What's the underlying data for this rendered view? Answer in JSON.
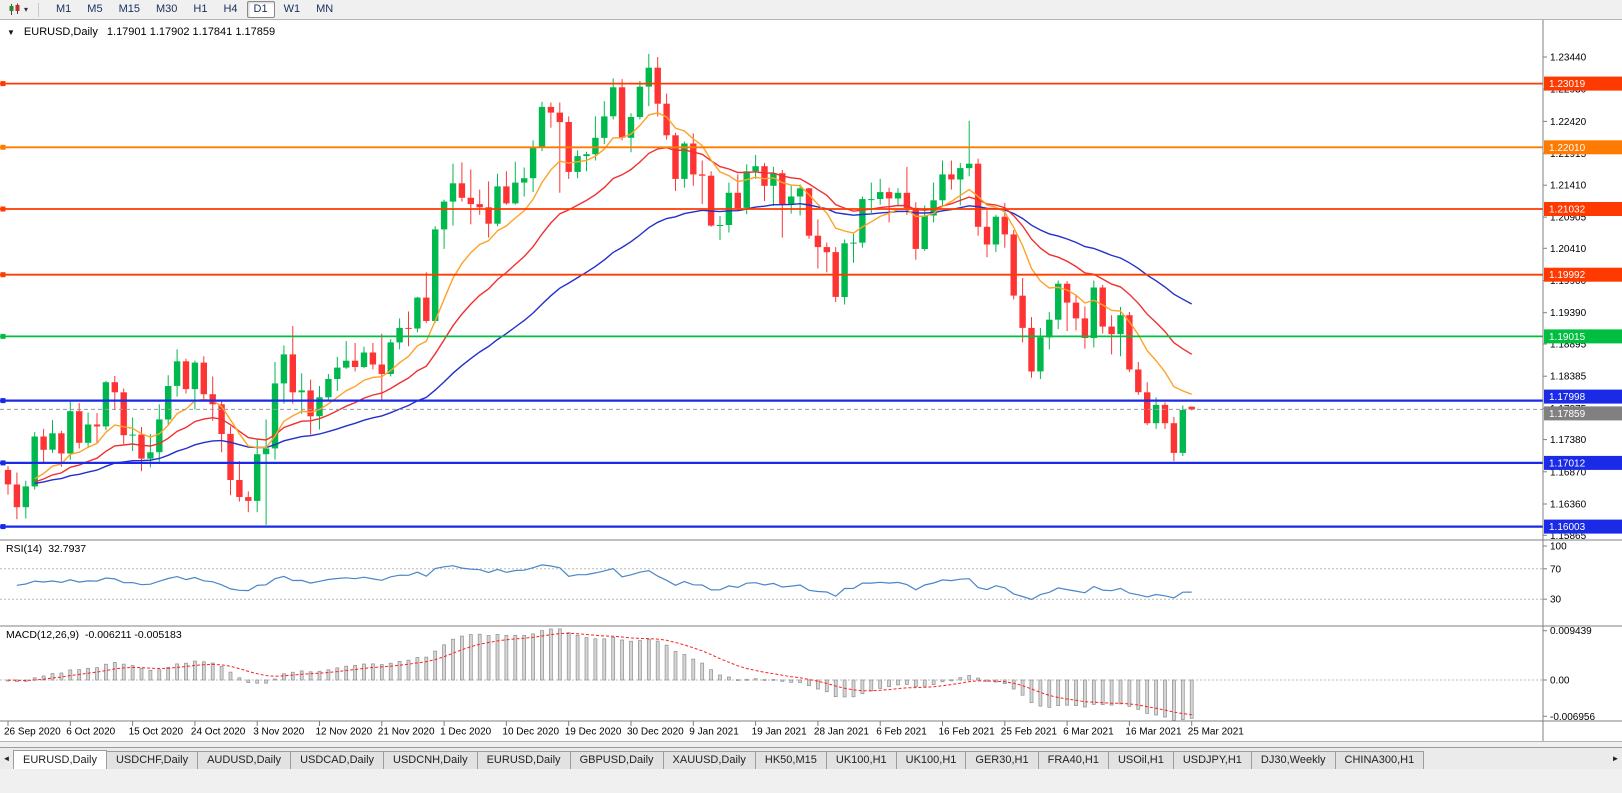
{
  "glyphs": {
    "window_marker": "▼",
    "dropdown": "▾",
    "tab_left": "◄",
    "tab_right": "►"
  },
  "toolbar": {
    "timeframes": [
      {
        "label": "M1",
        "active": false
      },
      {
        "label": "M5",
        "active": false
      },
      {
        "label": "M15",
        "active": false
      },
      {
        "label": "M30",
        "active": false
      },
      {
        "label": "H1",
        "active": false
      },
      {
        "label": "H4",
        "active": false
      },
      {
        "label": "D1",
        "active": true
      },
      {
        "label": "W1",
        "active": false
      },
      {
        "label": "MN",
        "active": false
      }
    ]
  },
  "chart_data": {
    "type": "candlestick",
    "symbol": "EURUSD",
    "timeframe": "Daily",
    "title": "EURUSD,Daily",
    "quotes": "1.17901 1.17902 1.17841 1.17859",
    "current_price": 1.17859,
    "current_price_display": "1.17859",
    "visible_price_range": {
      "high": 1.2403,
      "low": 1.1578
    },
    "colors": {
      "up": "#00b94e",
      "down": "#fe3434"
    },
    "price_axis_ticks": [
      "1.23440",
      "1.22930",
      "1.22420",
      "1.21915",
      "1.21410",
      "1.20905",
      "1.20410",
      "1.19900",
      "1.19390",
      "1.18895",
      "1.18385",
      "1.17875",
      "1.17380",
      "1.16870",
      "1.16360",
      "1.15865"
    ],
    "horizontal_levels": [
      {
        "price": 1.23019,
        "label": "1.23019",
        "color": "#ff3a00",
        "width": 1.8
      },
      {
        "price": 1.2201,
        "label": "1.22010",
        "color": "#ff7a00",
        "width": 1.8
      },
      {
        "price": 1.21032,
        "label": "1.21032",
        "color": "#ff3a00",
        "width": 1.8
      },
      {
        "price": 1.19992,
        "label": "1.19992",
        "color": "#ff3a00",
        "width": 1.8
      },
      {
        "price": 1.19015,
        "label": "1.19015",
        "color": "#00bf40",
        "width": 1.8
      },
      {
        "price": 1.17998,
        "label": "1.17998",
        "color": "#1a2ae6",
        "width": 2.2,
        "label_dy": -4
      },
      {
        "price": 1.17012,
        "label": "1.17012",
        "color": "#1a2ae6",
        "width": 2.2
      },
      {
        "price": 1.16003,
        "label": "1.16003",
        "color": "#1a2ae6",
        "width": 2.2
      }
    ],
    "moving_averages": [
      {
        "period": 45,
        "type": "ema",
        "color": "#2330cc"
      },
      {
        "period": 21,
        "type": "ema",
        "color": "#f03030"
      },
      {
        "period": 10,
        "type": "ema",
        "color": "#ffa226"
      }
    ],
    "x_labels": [
      {
        "i": 0,
        "label": "26 Sep 2020"
      },
      {
        "i": 7,
        "label": "6 Oct 2020"
      },
      {
        "i": 14,
        "label": "15 Oct 2020"
      },
      {
        "i": 21,
        "label": "24 Oct 2020"
      },
      {
        "i": 28,
        "label": "3 Nov 2020"
      },
      {
        "i": 35,
        "label": "12 Nov 2020"
      },
      {
        "i": 42,
        "label": "21 Nov 2020"
      },
      {
        "i": 49,
        "label": "1 Dec 2020"
      },
      {
        "i": 56,
        "label": "10 Dec 2020"
      },
      {
        "i": 63,
        "label": "19 Dec 2020"
      },
      {
        "i": 70,
        "label": "30 Dec 2020"
      },
      {
        "i": 77,
        "label": "9 Jan 2021"
      },
      {
        "i": 84,
        "label": "19 Jan 2021"
      },
      {
        "i": 91,
        "label": "28 Jan 2021"
      },
      {
        "i": 98,
        "label": "6 Feb 2021"
      },
      {
        "i": 105,
        "label": "16 Feb 2021"
      },
      {
        "i": 112,
        "label": "25 Feb 2021"
      },
      {
        "i": 119,
        "label": "6 Mar 2021"
      },
      {
        "i": 126,
        "label": "16 Mar 2021"
      },
      {
        "i": 133,
        "label": "25 Mar 2021"
      }
    ],
    "candles": [
      [
        1.169,
        1.1696,
        1.1651,
        1.1667
      ],
      [
        1.1667,
        1.1686,
        1.1612,
        1.1631
      ],
      [
        1.1631,
        1.1673,
        1.1613,
        1.1664
      ],
      [
        1.1664,
        1.175,
        1.1659,
        1.1743
      ],
      [
        1.1743,
        1.1755,
        1.1702,
        1.1722
      ],
      [
        1.1722,
        1.1769,
        1.1717,
        1.1748
      ],
      [
        1.1748,
        1.1752,
        1.1695,
        1.1716
      ],
      [
        1.1716,
        1.1798,
        1.1706,
        1.1783
      ],
      [
        1.1783,
        1.1796,
        1.1724,
        1.1733
      ],
      [
        1.1733,
        1.1781,
        1.1725,
        1.1762
      ],
      [
        1.1762,
        1.178,
        1.1733,
        1.1759
      ],
      [
        1.1759,
        1.1831,
        1.1753,
        1.1829
      ],
      [
        1.1829,
        1.1839,
        1.1785,
        1.1813
      ],
      [
        1.1813,
        1.1819,
        1.1731,
        1.1745
      ],
      [
        1.1745,
        1.1773,
        1.172,
        1.1746
      ],
      [
        1.1746,
        1.1758,
        1.1688,
        1.1708
      ],
      [
        1.1708,
        1.1747,
        1.1694,
        1.1718
      ],
      [
        1.1718,
        1.1794,
        1.1703,
        1.177
      ],
      [
        1.177,
        1.184,
        1.1761,
        1.1823
      ],
      [
        1.1823,
        1.1881,
        1.1806,
        1.1862
      ],
      [
        1.1862,
        1.1866,
        1.1811,
        1.1818
      ],
      [
        1.1818,
        1.1863,
        1.1786,
        1.186
      ],
      [
        1.186,
        1.187,
        1.1802,
        1.181
      ],
      [
        1.181,
        1.1838,
        1.1768,
        1.1794
      ],
      [
        1.1794,
        1.18,
        1.1718,
        1.1747
      ],
      [
        1.1747,
        1.1759,
        1.165,
        1.1674
      ],
      [
        1.1674,
        1.1704,
        1.164,
        1.1647
      ],
      [
        1.1647,
        1.1656,
        1.1623,
        1.1641
      ],
      [
        1.1641,
        1.174,
        1.1623,
        1.1715
      ],
      [
        1.1715,
        1.177,
        1.1603,
        1.1724
      ],
      [
        1.1724,
        1.1861,
        1.1706,
        1.1827
      ],
      [
        1.1827,
        1.1887,
        1.1795,
        1.1873
      ],
      [
        1.1873,
        1.1918,
        1.1795,
        1.1813
      ],
      [
        1.1813,
        1.1843,
        1.1779,
        1.1816
      ],
      [
        1.1816,
        1.1833,
        1.1746,
        1.1775
      ],
      [
        1.1775,
        1.1823,
        1.1754,
        1.1805
      ],
      [
        1.1805,
        1.1842,
        1.1799,
        1.1834
      ],
      [
        1.1834,
        1.1869,
        1.1815,
        1.1852
      ],
      [
        1.1852,
        1.1894,
        1.185,
        1.1863
      ],
      [
        1.1863,
        1.1891,
        1.1846,
        1.1853
      ],
      [
        1.1853,
        1.1885,
        1.1851,
        1.1876
      ],
      [
        1.1876,
        1.1891,
        1.1849,
        1.1857
      ],
      [
        1.1857,
        1.1906,
        1.18,
        1.1842
      ],
      [
        1.1842,
        1.1897,
        1.1838,
        1.1892
      ],
      [
        1.1892,
        1.193,
        1.1881,
        1.1915
      ],
      [
        1.1915,
        1.1941,
        1.1886,
        1.1914
      ],
      [
        1.1914,
        1.1964,
        1.1908,
        1.1963
      ],
      [
        1.1963,
        1.2003,
        1.1923,
        1.1926
      ],
      [
        1.1926,
        1.2076,
        1.1923,
        1.2071
      ],
      [
        1.2071,
        1.2118,
        1.204,
        1.2115
      ],
      [
        1.2115,
        1.2175,
        1.2077,
        1.2144
      ],
      [
        1.2144,
        1.2177,
        1.2115,
        1.2121
      ],
      [
        1.2121,
        1.2166,
        1.2079,
        1.2111
      ],
      [
        1.2111,
        1.2134,
        1.2094,
        1.2106
      ],
      [
        1.2106,
        1.2147,
        1.2058,
        1.208
      ],
      [
        1.208,
        1.2159,
        1.2076,
        1.2139
      ],
      [
        1.2139,
        1.2163,
        1.211,
        1.2112
      ],
      [
        1.2112,
        1.2178,
        1.211,
        1.2145
      ],
      [
        1.2145,
        1.2169,
        1.2123,
        1.2152
      ],
      [
        1.2152,
        1.2212,
        1.213,
        1.22
      ],
      [
        1.22,
        1.2273,
        1.2195,
        1.2265
      ],
      [
        1.2265,
        1.2272,
        1.2232,
        1.2256
      ],
      [
        1.2256,
        1.2272,
        1.2129,
        1.2241
      ],
      [
        1.2241,
        1.225,
        1.2151,
        1.2162
      ],
      [
        1.2162,
        1.2196,
        1.2152,
        1.2187
      ],
      [
        1.2187,
        1.2194,
        1.2163,
        1.219
      ],
      [
        1.219,
        1.225,
        1.218,
        1.2216
      ],
      [
        1.2216,
        1.2274,
        1.2206,
        1.225
      ],
      [
        1.225,
        1.231,
        1.2245,
        1.2296
      ],
      [
        1.2296,
        1.2309,
        1.2212,
        1.2216
      ],
      [
        1.2216,
        1.2255,
        1.2193,
        1.2249
      ],
      [
        1.2249,
        1.2306,
        1.2245,
        1.2297
      ],
      [
        1.2297,
        1.2349,
        1.2266,
        1.2327
      ],
      [
        1.2327,
        1.2344,
        1.225,
        1.227
      ],
      [
        1.227,
        1.2286,
        1.2213,
        1.222
      ],
      [
        1.222,
        1.2224,
        1.2132,
        1.2151
      ],
      [
        1.2151,
        1.221,
        1.2137,
        1.2207
      ],
      [
        1.2207,
        1.2223,
        1.214,
        1.2158
      ],
      [
        1.2158,
        1.218,
        1.2111,
        1.2156
      ],
      [
        1.2156,
        1.2163,
        1.2075,
        1.2077
      ],
      [
        1.2077,
        1.2092,
        1.2054,
        1.2078
      ],
      [
        1.2078,
        1.2145,
        1.2066,
        1.2129
      ],
      [
        1.2129,
        1.2158,
        1.2101,
        1.2105
      ],
      [
        1.2105,
        1.2174,
        1.2095,
        1.2163
      ],
      [
        1.2163,
        1.2189,
        1.2151,
        1.2171
      ],
      [
        1.2171,
        1.2176,
        1.2116,
        1.214
      ],
      [
        1.214,
        1.217,
        1.2108,
        1.216
      ],
      [
        1.216,
        1.2165,
        1.2058,
        1.2111
      ],
      [
        1.2111,
        1.2142,
        1.2096,
        1.2123
      ],
      [
        1.2123,
        1.2142,
        1.2093,
        1.2136
      ],
      [
        1.2136,
        1.2137,
        1.2056,
        1.2061
      ],
      [
        1.2061,
        1.2087,
        1.2009,
        1.2043
      ],
      [
        1.2043,
        1.205,
        1.2003,
        1.2035
      ],
      [
        1.2035,
        1.2043,
        1.1956,
        1.1964
      ],
      [
        1.1964,
        1.2055,
        1.1952,
        1.2049
      ],
      [
        1.2049,
        1.2064,
        1.2018,
        1.205
      ],
      [
        1.205,
        1.2123,
        1.2042,
        1.2119
      ],
      [
        1.2119,
        1.2145,
        1.2097,
        1.2119
      ],
      [
        1.2119,
        1.2151,
        1.211,
        1.213
      ],
      [
        1.213,
        1.2137,
        1.2082,
        1.212
      ],
      [
        1.212,
        1.2136,
        1.2108,
        1.2129
      ],
      [
        1.2129,
        1.217,
        1.2094,
        1.2105
      ],
      [
        1.2105,
        1.2114,
        1.2023,
        1.204
      ],
      [
        1.204,
        1.2109,
        1.2037,
        1.2093
      ],
      [
        1.2093,
        1.2145,
        1.2082,
        1.2117
      ],
      [
        1.2117,
        1.218,
        1.2107,
        1.2158
      ],
      [
        1.2158,
        1.218,
        1.2134,
        1.215
      ],
      [
        1.215,
        1.2176,
        1.2109,
        1.2168
      ],
      [
        1.2168,
        1.2243,
        1.2155,
        1.2175
      ],
      [
        1.2175,
        1.2183,
        1.2061,
        1.2075
      ],
      [
        1.2075,
        1.2101,
        1.2027,
        1.2047
      ],
      [
        1.2047,
        1.2094,
        1.2035,
        1.2091
      ],
      [
        1.2091,
        1.2113,
        1.2042,
        1.2063
      ],
      [
        1.2063,
        1.207,
        1.196,
        1.1966
      ],
      [
        1.1966,
        1.1994,
        1.1892,
        1.1915
      ],
      [
        1.1915,
        1.1932,
        1.1836,
        1.1846
      ],
      [
        1.1846,
        1.1915,
        1.1834,
        1.19
      ],
      [
        1.19,
        1.194,
        1.1881,
        1.1928
      ],
      [
        1.1928,
        1.199,
        1.1913,
        1.1985
      ],
      [
        1.1985,
        1.1989,
        1.191,
        1.1955
      ],
      [
        1.1955,
        1.1968,
        1.1911,
        1.193
      ],
      [
        1.193,
        1.1949,
        1.1882,
        1.1899
      ],
      [
        1.1899,
        1.199,
        1.1884,
        1.1979
      ],
      [
        1.1979,
        1.1983,
        1.1906,
        1.1917
      ],
      [
        1.1917,
        1.1935,
        1.1873,
        1.1905
      ],
      [
        1.1905,
        1.1948,
        1.187,
        1.1935
      ],
      [
        1.1935,
        1.194,
        1.1845,
        1.1849
      ],
      [
        1.1849,
        1.1861,
        1.1809,
        1.1813
      ],
      [
        1.1813,
        1.1829,
        1.1761,
        1.1764
      ],
      [
        1.1764,
        1.1805,
        1.1755,
        1.1793
      ],
      [
        1.1793,
        1.1797,
        1.1755,
        1.1764
      ],
      [
        1.1764,
        1.1774,
        1.1704,
        1.1717
      ],
      [
        1.1717,
        1.1792,
        1.1712,
        1.1785
      ],
      [
        1.17901,
        1.17902,
        1.17841,
        1.17859
      ]
    ],
    "indicators": {
      "rsi": {
        "label": "RSI(14)",
        "display_value": "32.7937",
        "period": 14,
        "color": "#4a86c8",
        "levels": [
          70,
          30
        ],
        "axis_ticks": [
          "100",
          "70",
          "30"
        ]
      },
      "macd": {
        "label": "MACD(12,26,9)",
        "display_values": "-0.006211 -0.005183",
        "fast": 12,
        "slow": 26,
        "signal": 9,
        "signal_color": "#ff2020",
        "axis_ticks": [
          {
            "label": "0.009439",
            "v": 0.009439
          },
          {
            "label": "0.00",
            "v": 0
          },
          {
            "label": "-0.006956",
            "v": -0.006956
          }
        ]
      }
    }
  },
  "tabs": {
    "items": [
      {
        "label": "EURUSD,Daily",
        "active": true
      },
      {
        "label": "USDCHF,Daily",
        "active": false
      },
      {
        "label": "AUDUSD,Daily",
        "active": false
      },
      {
        "label": "USDCAD,Daily",
        "active": false
      },
      {
        "label": "USDCNH,Daily",
        "active": false
      },
      {
        "label": "EURUSD,Daily",
        "active": false
      },
      {
        "label": "GBPUSD,Daily",
        "active": false
      },
      {
        "label": "XAUUSD,Daily",
        "active": false
      },
      {
        "label": "HK50,M15",
        "active": false
      },
      {
        "label": "UK100,H1",
        "active": false
      },
      {
        "label": "UK100,H1",
        "active": false
      },
      {
        "label": "GER30,H1",
        "active": false
      },
      {
        "label": "FRA40,H1",
        "active": false
      },
      {
        "label": "USOil,H1",
        "active": false
      },
      {
        "label": "USDJPY,H1",
        "active": false
      },
      {
        "label": "DJ30,Weekly",
        "active": false
      },
      {
        "label": "CHINA300,H1",
        "active": false
      }
    ]
  }
}
